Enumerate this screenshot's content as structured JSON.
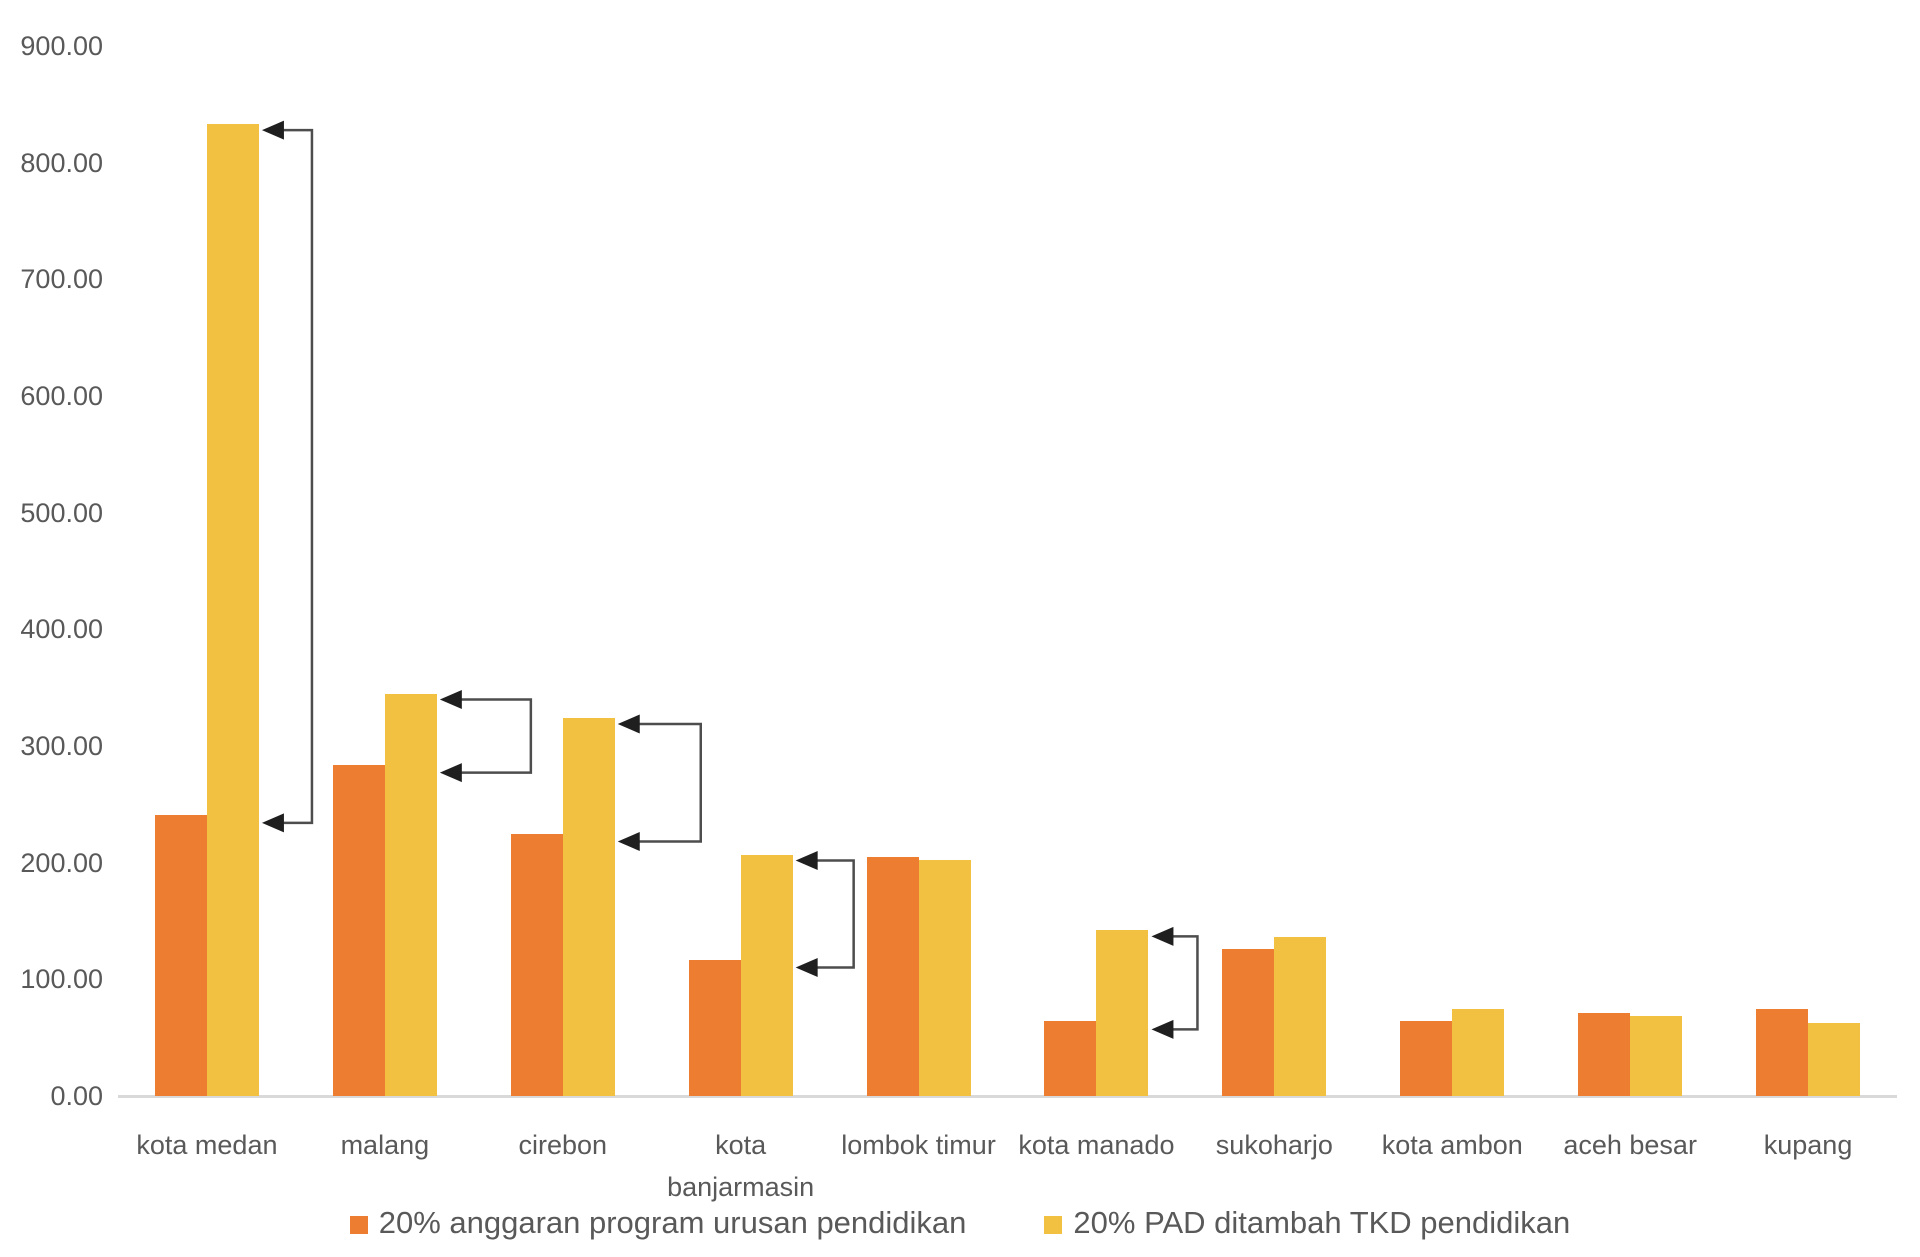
{
  "chart_data": {
    "type": "bar",
    "title": "",
    "xlabel": "",
    "ylabel": "",
    "categories": [
      "kota medan",
      "malang",
      "cirebon",
      "kota banjarmasin",
      "lombok timur",
      "kota manado",
      "sukoharjo",
      "kota ambon",
      "aceh besar",
      "kupang"
    ],
    "series": [
      {
        "name": "20% anggaran program urusan pendidikan",
        "color": "#ED7D31",
        "values": [
          241,
          284,
          225,
          117,
          205,
          64,
          126,
          64,
          71,
          75
        ]
      },
      {
        "name": "20% PAD ditambah TKD pendidikan",
        "color": "#F2C142",
        "values": [
          833,
          345,
          324,
          207,
          202,
          142,
          136,
          75,
          69,
          63
        ]
      }
    ],
    "ylim": [
      0,
      900
    ],
    "ytick_values": [
      0,
      100,
      200,
      300,
      400,
      500,
      600,
      700,
      800,
      900
    ],
    "yticks": [
      "0.00",
      "100.00",
      "200.00",
      "300.00",
      "400.00",
      "500.00",
      "600.00",
      "700.00",
      "800.00",
      "900.00"
    ],
    "grid": false,
    "legend_position": "bottom",
    "annotations": [
      {
        "category": "kota medan",
        "type": "difference-arrow",
        "from": "yellow-bar-top",
        "to": "orange-bar-top"
      },
      {
        "category": "malang",
        "type": "difference-arrow",
        "from": "yellow-bar-top",
        "to": "orange-bar-top"
      },
      {
        "category": "cirebon",
        "type": "difference-arrow",
        "from": "yellow-bar-top",
        "to": "orange-bar-top"
      },
      {
        "category": "kota banjarmasin",
        "type": "difference-arrow",
        "from": "yellow-bar-top",
        "to": "orange-bar-top"
      },
      {
        "category": "kota manado",
        "type": "difference-arrow",
        "from": "yellow-bar-top",
        "to": "orange-bar-top"
      }
    ],
    "colors": {
      "axis_text": "#595959",
      "axis_line": "#D9D9D9",
      "annotation_line": "#4D4D4D",
      "annotation_arrowhead": "#1F1F1F",
      "background": "#FFFFFF"
    }
  }
}
